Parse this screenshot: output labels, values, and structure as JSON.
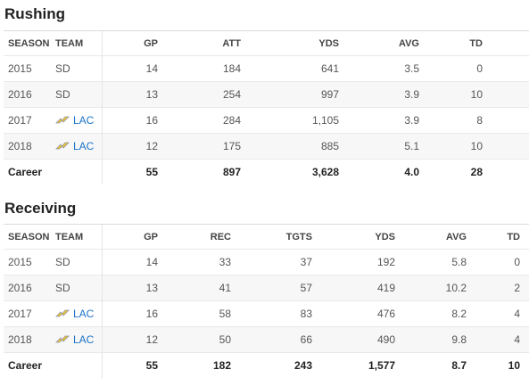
{
  "rushing": {
    "title": "Rushing",
    "headers": [
      "SEASON",
      "TEAM",
      "GP",
      "ATT",
      "YDS",
      "AVG",
      "TD"
    ],
    "rows": [
      {
        "season": "2015",
        "team": "SD",
        "team_logo": "",
        "gp": "14",
        "att": "184",
        "yds": "641",
        "avg": "3.5",
        "td": "0"
      },
      {
        "season": "2016",
        "team": "SD",
        "team_logo": "",
        "gp": "13",
        "att": "254",
        "yds": "997",
        "avg": "3.9",
        "td": "10"
      },
      {
        "season": "2017",
        "team": "LAC",
        "team_logo": "chargers-bolt-icon",
        "gp": "16",
        "att": "284",
        "yds": "1,105",
        "avg": "3.9",
        "td": "8"
      },
      {
        "season": "2018",
        "team": "LAC",
        "team_logo": "chargers-bolt-icon",
        "gp": "12",
        "att": "175",
        "yds": "885",
        "avg": "5.1",
        "td": "10"
      }
    ],
    "career": {
      "label": "Career",
      "gp": "55",
      "att": "897",
      "yds": "3,628",
      "avg": "4.0",
      "td": "28"
    }
  },
  "receiving": {
    "title": "Receiving",
    "headers": [
      "SEASON",
      "TEAM",
      "GP",
      "REC",
      "TGTS",
      "YDS",
      "AVG",
      "TD"
    ],
    "rows": [
      {
        "season": "2015",
        "team": "SD",
        "team_logo": "",
        "gp": "14",
        "rec": "33",
        "tgts": "37",
        "yds": "192",
        "avg": "5.8",
        "td": "0"
      },
      {
        "season": "2016",
        "team": "SD",
        "team_logo": "",
        "gp": "13",
        "rec": "41",
        "tgts": "57",
        "yds": "419",
        "avg": "10.2",
        "td": "2"
      },
      {
        "season": "2017",
        "team": "LAC",
        "team_logo": "chargers-bolt-icon",
        "gp": "16",
        "rec": "58",
        "tgts": "83",
        "yds": "476",
        "avg": "8.2",
        "td": "4"
      },
      {
        "season": "2018",
        "team": "LAC",
        "team_logo": "chargers-bolt-icon",
        "gp": "12",
        "rec": "50",
        "tgts": "66",
        "yds": "490",
        "avg": "9.8",
        "td": "4"
      }
    ],
    "career": {
      "label": "Career",
      "gp": "55",
      "rec": "182",
      "tgts": "243",
      "yds": "1,577",
      "avg": "8.7",
      "td": "10"
    }
  },
  "colors": {
    "link": "#1a73c8",
    "bolt_fill": "#f2c230",
    "bolt_stroke": "#8a96a8"
  }
}
